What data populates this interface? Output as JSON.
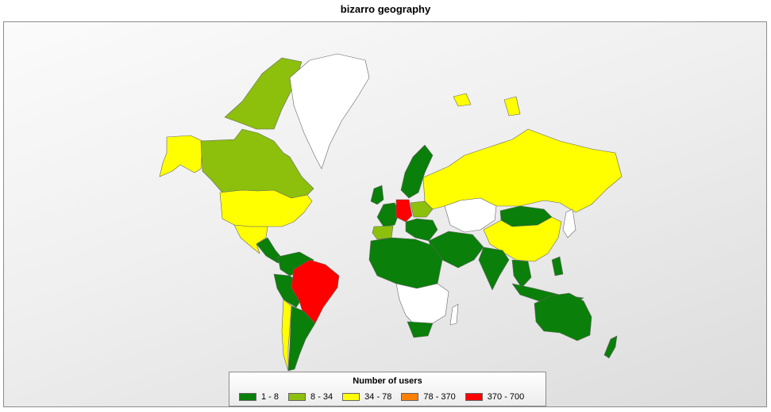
{
  "title": "bizarro geography",
  "colors": {
    "no_data": "#ffffff",
    "range_1": "#0a7f0a",
    "range_2": "#8cc00c",
    "range_3": "#ffff00",
    "range_4": "#ff7f00",
    "range_5": "#ff0000",
    "border": "#666666",
    "background_light": "#fbfbfb",
    "background_dark": "#dcdcdc"
  },
  "legend": {
    "title": "Number of users",
    "items": [
      {
        "label": "1 - 8",
        "color": "#0a7f0a"
      },
      {
        "label": "8 - 34",
        "color": "#8cc00c"
      },
      {
        "label": "34 - 78",
        "color": "#ffff00"
      },
      {
        "label": "78 - 370",
        "color": "#ff7f00"
      },
      {
        "label": "370 - 700",
        "color": "#ff0000"
      }
    ]
  },
  "regions": [
    {
      "name": "United States",
      "bin": "34 - 78"
    },
    {
      "name": "Alaska",
      "bin": "34 - 78"
    },
    {
      "name": "Canada",
      "bin": "8 - 34"
    },
    {
      "name": "Mexico",
      "bin": "34 - 78"
    },
    {
      "name": "Greenland",
      "bin": "no data"
    },
    {
      "name": "Brazil",
      "bin": "370 - 700"
    },
    {
      "name": "Argentina",
      "bin": "1 - 8"
    },
    {
      "name": "Chile",
      "bin": "34 - 78"
    },
    {
      "name": "Peru",
      "bin": "1 - 8"
    },
    {
      "name": "Germany",
      "bin": "370 - 700"
    },
    {
      "name": "Russia",
      "bin": "34 - 78"
    },
    {
      "name": "China",
      "bin": "34 - 78"
    },
    {
      "name": "Mongolia",
      "bin": "1 - 8"
    },
    {
      "name": "Kazakhstan",
      "bin": "no data"
    },
    {
      "name": "India",
      "bin": "1 - 8"
    },
    {
      "name": "Australia",
      "bin": "1 - 8"
    },
    {
      "name": "New Zealand",
      "bin": "1 - 8"
    },
    {
      "name": "Spain",
      "bin": "8 - 34"
    },
    {
      "name": "Poland",
      "bin": "8 - 34"
    },
    {
      "name": "Scandinavia",
      "bin": "1 - 8"
    },
    {
      "name": "North Africa",
      "bin": "1 - 8"
    },
    {
      "name": "Southern Africa",
      "bin": "no data"
    },
    {
      "name": "South Africa",
      "bin": "1 - 8"
    },
    {
      "name": "Middle East",
      "bin": "1 - 8"
    },
    {
      "name": "Southeast Asia",
      "bin": "1 - 8"
    },
    {
      "name": "Japan",
      "bin": "no data"
    }
  ]
}
